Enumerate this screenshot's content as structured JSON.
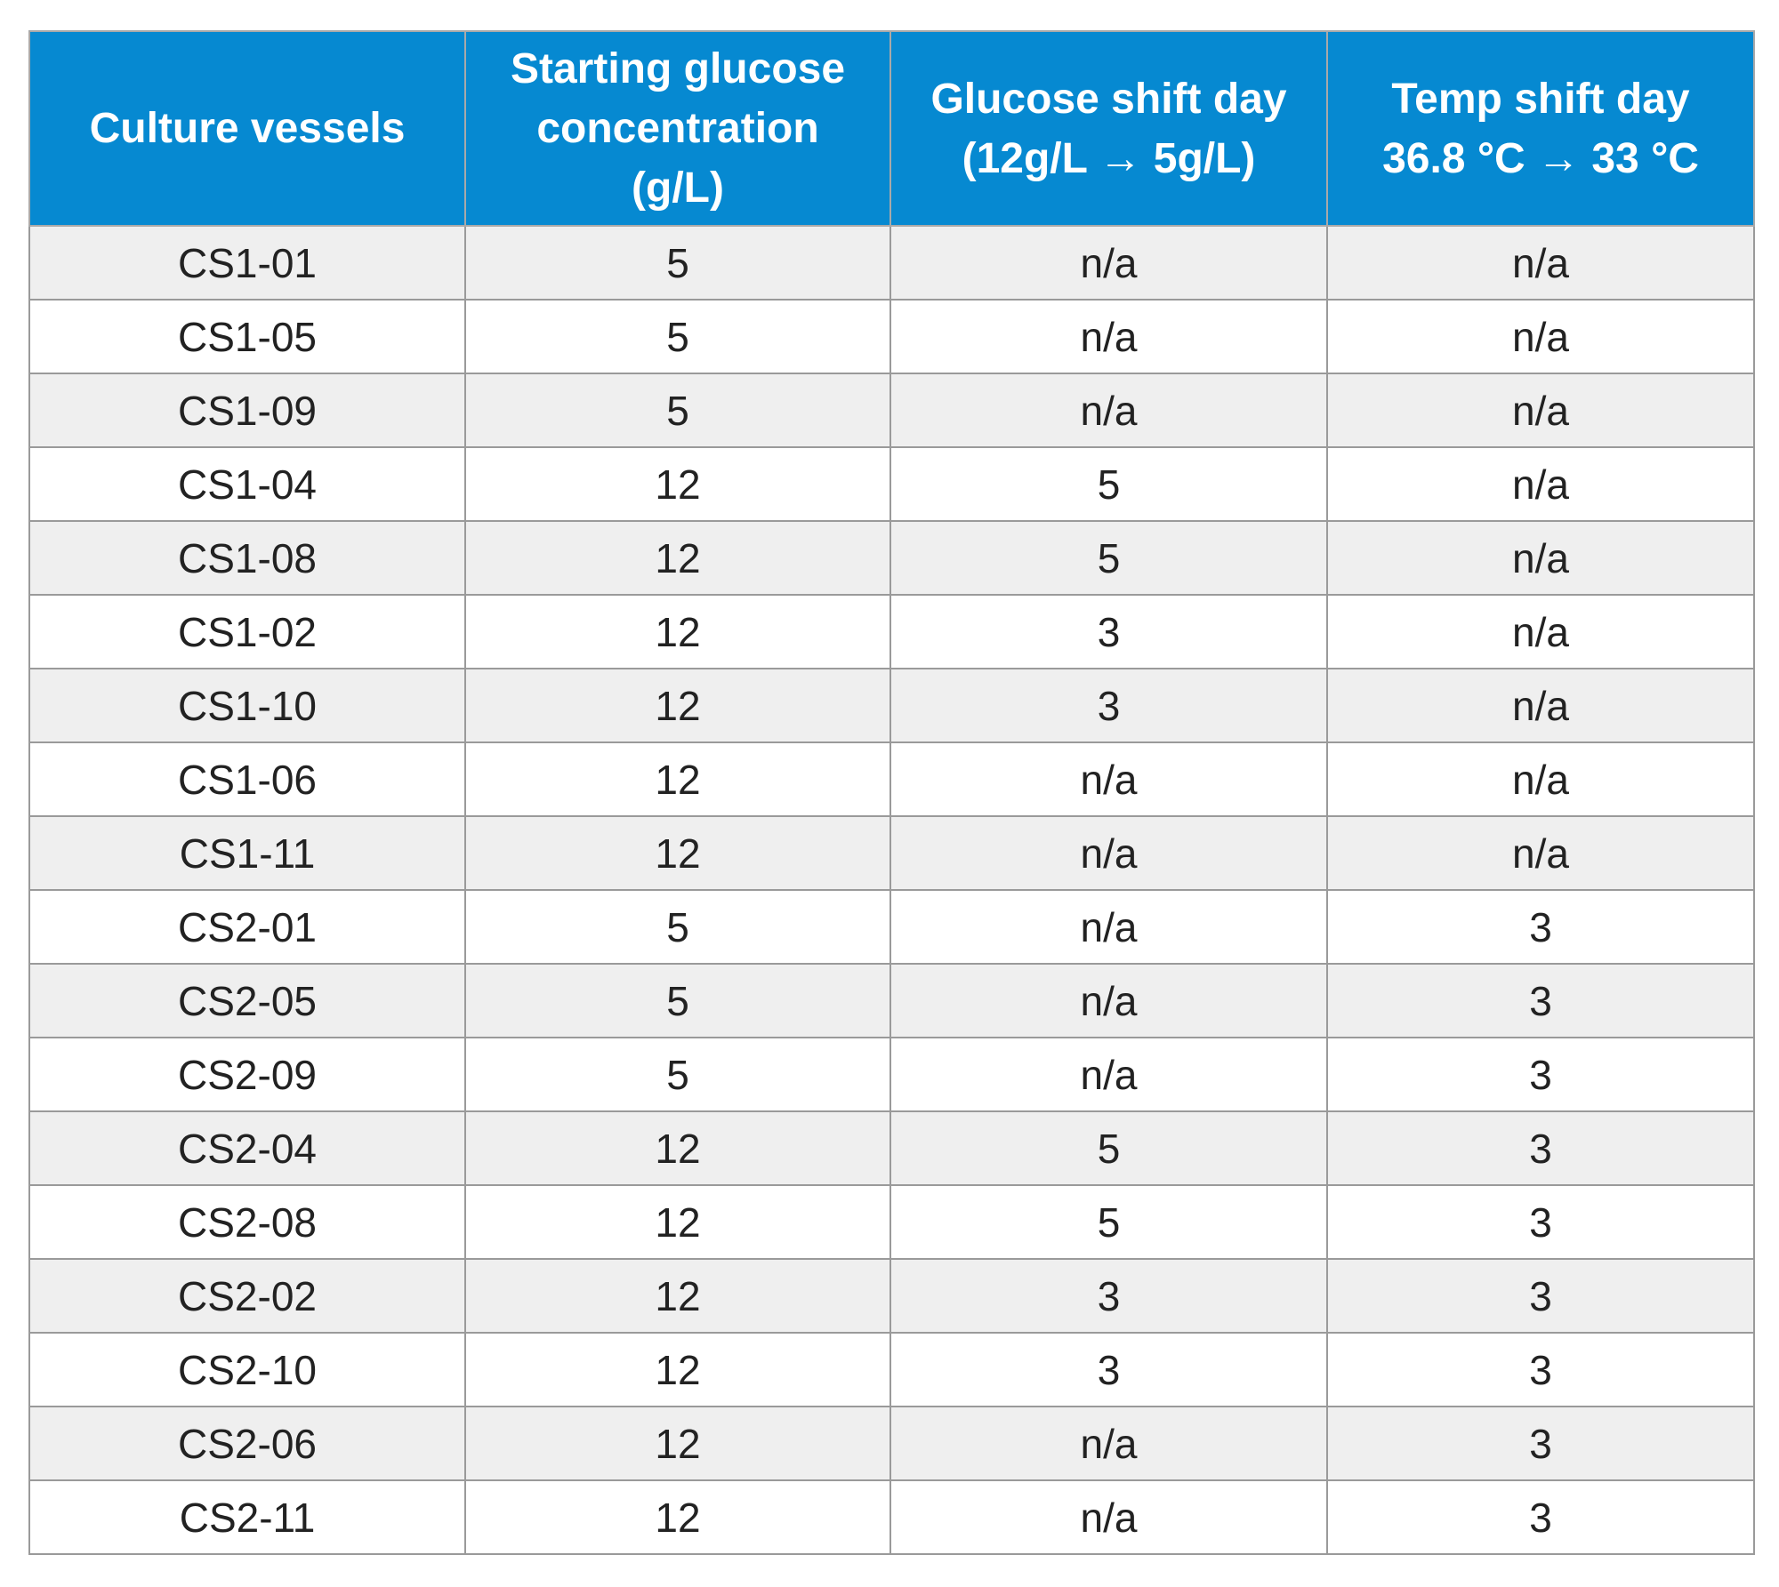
{
  "table": {
    "header": [
      [
        "Culture vessels"
      ],
      [
        "Starting glucose",
        "concentration",
        "(g/L)"
      ],
      [
        "Glucose shift day",
        "(12g/L → 5g/L)"
      ],
      [
        "Temp shift day",
        "36.8 °C → 33 °C"
      ]
    ],
    "rows": [
      [
        "CS1-01",
        5,
        "n/a",
        "n/a"
      ],
      [
        "CS1-05",
        5,
        "n/a",
        "n/a"
      ],
      [
        "CS1-09",
        5,
        "n/a",
        "n/a"
      ],
      [
        "CS1-04",
        12,
        5,
        "n/a"
      ],
      [
        "CS1-08",
        12,
        5,
        "n/a"
      ],
      [
        "CS1-02",
        12,
        3,
        "n/a"
      ],
      [
        "CS1-10",
        12,
        3,
        "n/a"
      ],
      [
        "CS1-06",
        12,
        "n/a",
        "n/a"
      ],
      [
        "CS1-11",
        12,
        "n/a",
        "n/a"
      ],
      [
        "CS2-01",
        5,
        "n/a",
        3
      ],
      [
        "CS2-05",
        5,
        "n/a",
        3
      ],
      [
        "CS2-09",
        5,
        "n/a",
        3
      ],
      [
        "CS2-04",
        12,
        5,
        3
      ],
      [
        "CS2-08",
        12,
        5,
        3
      ],
      [
        "CS2-02",
        12,
        3,
        3
      ],
      [
        "CS2-10",
        12,
        3,
        3
      ],
      [
        "CS2-06",
        12,
        "n/a",
        3
      ],
      [
        "CS2-11",
        12,
        "n/a",
        3
      ]
    ]
  }
}
